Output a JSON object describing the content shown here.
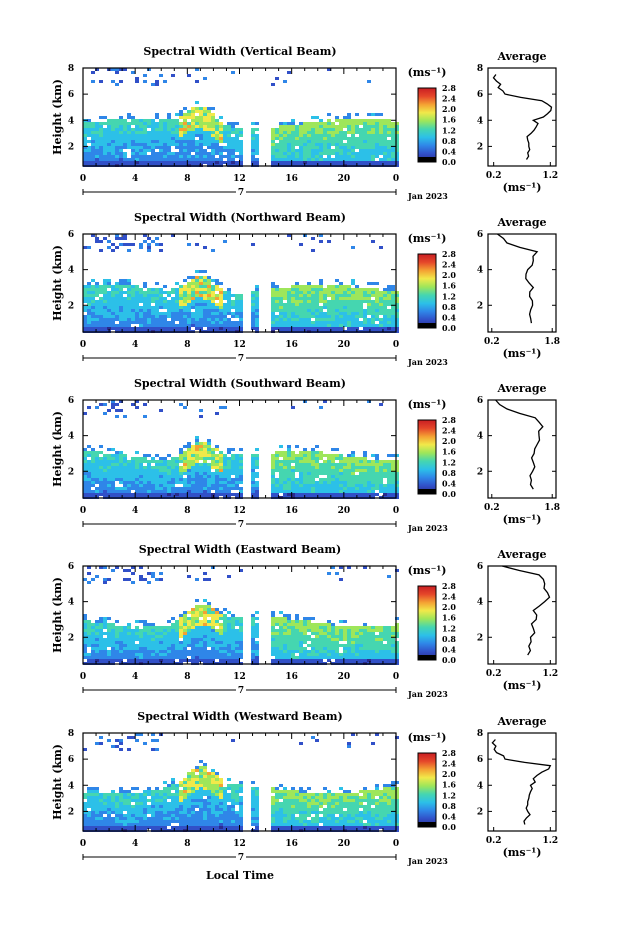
{
  "colorbar": {
    "unit_label": "(ms⁻¹)",
    "ticks": [
      "0.0",
      "0.4",
      "0.8",
      "1.2",
      "1.6",
      "2.0",
      "2.4",
      "2.8"
    ],
    "colors": [
      "#2b2b8f",
      "#3150c8",
      "#2f86e8",
      "#2cc0e8",
      "#45d6b0",
      "#9ee65a",
      "#f1e94a",
      "#f4a133",
      "#e5462a",
      "#c91e22"
    ]
  },
  "x_axis": {
    "ticks": [
      "0",
      "4",
      "8",
      "12",
      "16",
      "20",
      "0"
    ],
    "day_label": "7",
    "month_label": "Jan 2023",
    "xlabel": "Local Time"
  },
  "chart_data": [
    {
      "type": "heatmap",
      "title": "Spectral Width (Vertical Beam)",
      "ylabel": "Height (km)",
      "xlim": [
        0,
        24
      ],
      "ylim": [
        0.5,
        8
      ],
      "yticks": [
        "2",
        "4",
        "6",
        "8"
      ],
      "profile": {
        "title": "Average",
        "xlabel": "(ms⁻¹)",
        "xticks": [
          "0.2",
          "1.2"
        ],
        "yticks": [
          "2",
          "4",
          "6",
          "8"
        ],
        "height": [
          1.0,
          1.5,
          2.0,
          2.5,
          3.0,
          3.5,
          4.0,
          4.5,
          5.0,
          5.5,
          6.0,
          6.5,
          7.0,
          7.5
        ],
        "width": [
          0.78,
          0.8,
          0.82,
          0.8,
          0.86,
          0.95,
          0.9,
          1.15,
          1.22,
          1.05,
          0.4,
          0.28,
          0.25,
          0.24
        ]
      }
    },
    {
      "type": "heatmap",
      "title": "Spectral Width (Northward Beam)",
      "ylabel": "Height (km)",
      "xlim": [
        0,
        24
      ],
      "ylim": [
        0.5,
        6
      ],
      "yticks": [
        "2",
        "4",
        "6"
      ],
      "profile": {
        "title": "Average",
        "xlabel": "(ms⁻¹)",
        "xticks": [
          "0.2",
          "1.8"
        ],
        "yticks": [
          "2",
          "4",
          "6"
        ],
        "height": [
          1.0,
          1.5,
          2.0,
          2.5,
          3.0,
          3.5,
          4.0,
          4.5,
          5.0,
          5.5,
          6.0
        ],
        "width": [
          1.25,
          1.2,
          1.28,
          1.2,
          1.3,
          1.1,
          1.15,
          1.3,
          1.4,
          0.6,
          0.35
        ]
      }
    },
    {
      "type": "heatmap",
      "title": "Spectral Width (Southward Beam)",
      "ylabel": "Height (km)",
      "xlim": [
        0,
        24
      ],
      "ylim": [
        0.5,
        6
      ],
      "yticks": [
        "2",
        "4",
        "6"
      ],
      "profile": {
        "title": "Average",
        "xlabel": "(ms⁻¹)",
        "xticks": [
          "0.2",
          "1.8"
        ],
        "yticks": [
          "2",
          "4",
          "6"
        ],
        "height": [
          1.0,
          1.5,
          2.0,
          2.5,
          3.0,
          3.5,
          4.0,
          4.5,
          5.0,
          5.5,
          6.0
        ],
        "width": [
          1.3,
          1.25,
          1.28,
          1.3,
          1.32,
          1.4,
          1.45,
          1.55,
          1.35,
          0.6,
          0.3
        ]
      }
    },
    {
      "type": "heatmap",
      "title": "Spectral Width (Eastward Beam)",
      "ylabel": "Height (km)",
      "xlim": [
        0,
        24
      ],
      "ylim": [
        0.5,
        6
      ],
      "yticks": [
        "2",
        "4",
        "6"
      ],
      "profile": {
        "title": "Average",
        "xlabel": "(ms⁻¹)",
        "xticks": [
          "0.2",
          "1.2"
        ],
        "yticks": [
          "2",
          "4",
          "6"
        ],
        "height": [
          1.0,
          1.5,
          2.0,
          2.5,
          3.0,
          3.5,
          4.0,
          4.5,
          5.0,
          5.5,
          6.0
        ],
        "width": [
          0.8,
          0.82,
          0.85,
          0.9,
          0.95,
          0.9,
          1.1,
          1.15,
          1.1,
          1.0,
          0.35
        ]
      }
    },
    {
      "type": "heatmap",
      "title": "Spectral Width (Westward Beam)",
      "ylabel": "Height (km)",
      "xlim": [
        0,
        24
      ],
      "ylim": [
        0.5,
        8
      ],
      "yticks": [
        "2",
        "4",
        "6",
        "8"
      ],
      "profile": {
        "title": "Average",
        "xlabel": "(ms⁻¹)",
        "xticks": [
          "0.2",
          "1.2"
        ],
        "yticks": [
          "2",
          "4",
          "6",
          "8"
        ],
        "height": [
          1.0,
          1.5,
          2.0,
          2.5,
          3.0,
          3.5,
          4.0,
          4.5,
          5.0,
          5.5,
          6.0,
          6.5,
          7.0,
          7.5
        ],
        "width": [
          0.75,
          0.78,
          0.8,
          0.8,
          0.82,
          0.85,
          0.85,
          0.9,
          1.05,
          1.2,
          0.4,
          0.25,
          0.24,
          0.23
        ]
      }
    }
  ]
}
